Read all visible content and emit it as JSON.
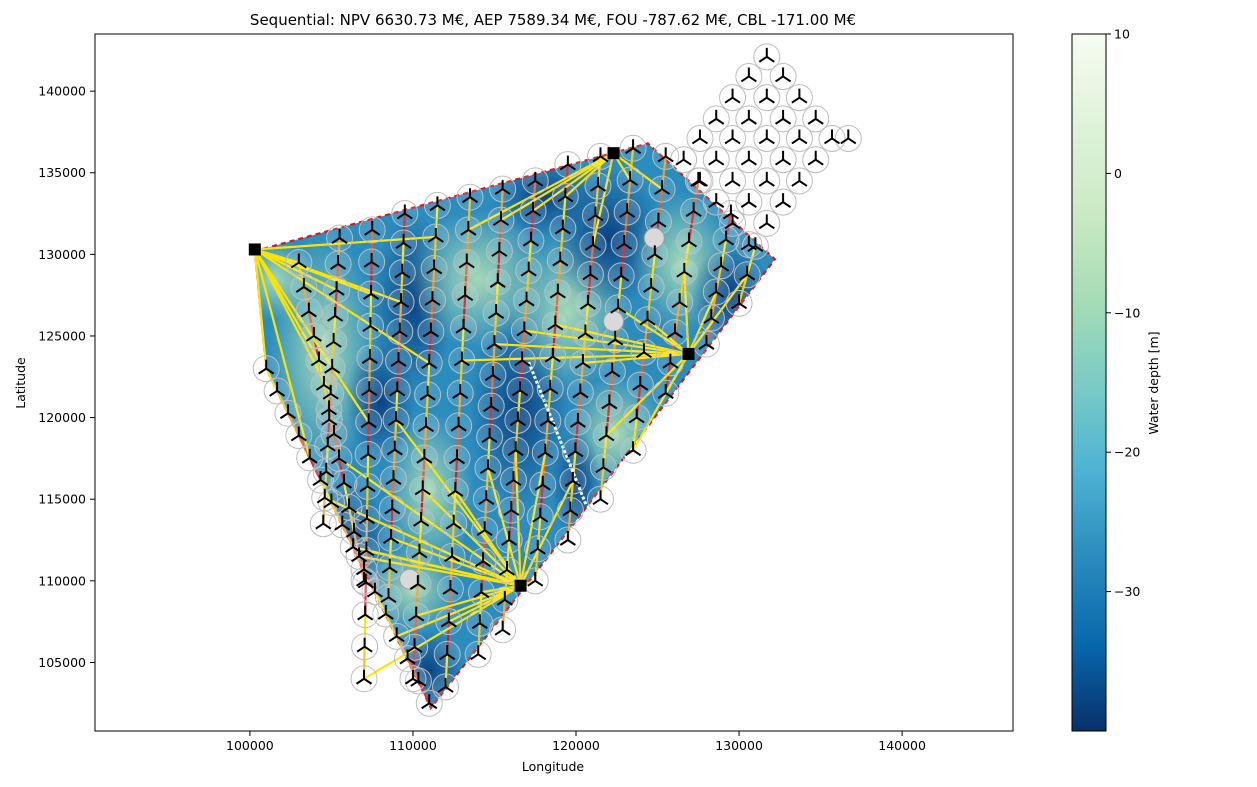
{
  "chart_data": {
    "type": "scatter",
    "title": "Sequential: NPV 6630.73 M€, AEP 7589.34 M€, FOU -787.62 M€, CBL -171.00 M€",
    "xlabel": "Longitude",
    "ylabel": "Latitude",
    "xlim": [
      90500,
      146800
    ],
    "ylim": [
      100800,
      143500
    ],
    "x_ticks": [
      100000,
      110000,
      120000,
      130000,
      140000
    ],
    "y_ticks": [
      105000,
      110000,
      115000,
      120000,
      125000,
      130000,
      135000,
      140000
    ],
    "grid": false,
    "colorbar": {
      "label": "Water depth [m]",
      "range": [
        -40,
        10
      ],
      "ticks": [
        10,
        0,
        -10,
        -20,
        -30
      ],
      "colormap": "GnBu_r",
      "stops": [
        "#08306b",
        "#0868ac",
        "#2b8cbe",
        "#4eb3d3",
        "#7bccc4",
        "#a8ddb5",
        "#ccebc5",
        "#e0f3db",
        "#f7fcf0"
      ]
    },
    "site_boundary": [
      [
        100300,
        130200
      ],
      [
        124400,
        136800
      ],
      [
        132200,
        129700
      ],
      [
        120400,
        114200
      ],
      [
        111100,
        102200
      ],
      [
        101000,
        123000
      ]
    ],
    "substations": [
      {
        "x": 100300,
        "y": 130300
      },
      {
        "x": 122300,
        "y": 136200
      },
      {
        "x": 126900,
        "y": 123900
      },
      {
        "x": 116600,
        "y": 109700
      }
    ],
    "turbine_rows": [
      {
        "x0": 101000,
        "y0": 123000,
        "x1": 111000,
        "y1": 102500,
        "n": 16
      },
      {
        "x0": 103000,
        "y0": 129500,
        "x1": 107000,
        "y1": 110000,
        "n": 14
      },
      {
        "x0": 105500,
        "y0": 131000,
        "x1": 104500,
        "y1": 113500,
        "n": 12
      },
      {
        "x0": 107500,
        "y0": 131500,
        "x1": 107000,
        "y1": 104000,
        "n": 15
      },
      {
        "x0": 109500,
        "y0": 132500,
        "x1": 108500,
        "y1": 109000,
        "n": 14
      },
      {
        "x0": 111500,
        "y0": 133000,
        "x1": 110000,
        "y1": 104000,
        "n": 16
      },
      {
        "x0": 113500,
        "y0": 133500,
        "x1": 112000,
        "y1": 103500,
        "n": 16
      },
      {
        "x0": 115500,
        "y0": 134000,
        "x1": 114000,
        "y1": 105500,
        "n": 16
      },
      {
        "x0": 117500,
        "y0": 134500,
        "x1": 115500,
        "y1": 107000,
        "n": 16
      },
      {
        "x0": 119500,
        "y0": 135500,
        "x1": 117500,
        "y1": 110000,
        "n": 14
      },
      {
        "x0": 121500,
        "y0": 136000,
        "x1": 119500,
        "y1": 112500,
        "n": 14
      },
      {
        "x0": 123500,
        "y0": 136500,
        "x1": 121500,
        "y1": 115000,
        "n": 12
      },
      {
        "x0": 125500,
        "y0": 136000,
        "x1": 123500,
        "y1": 118000,
        "n": 10
      },
      {
        "x0": 127500,
        "y0": 134500,
        "x1": 125500,
        "y1": 121500,
        "n": 8
      },
      {
        "x0": 129500,
        "y0": 132500,
        "x1": 128000,
        "y1": 124500,
        "n": 6
      },
      {
        "x0": 131000,
        "y0": 130500,
        "x1": 130000,
        "y1": 127000,
        "n": 3
      }
    ],
    "outside_turbines": [
      [
        131700,
        142100
      ],
      [
        130600,
        140900
      ],
      [
        132700,
        140900
      ],
      [
        129600,
        139600
      ],
      [
        131700,
        139600
      ],
      [
        133700,
        139600
      ],
      [
        128600,
        138300
      ],
      [
        130600,
        138300
      ],
      [
        132700,
        138300
      ],
      [
        134700,
        138300
      ],
      [
        127600,
        137100
      ],
      [
        129600,
        137100
      ],
      [
        131700,
        137100
      ],
      [
        133700,
        137100
      ],
      [
        135700,
        137100
      ],
      [
        126600,
        135800
      ],
      [
        128600,
        135800
      ],
      [
        130600,
        135800
      ],
      [
        132700,
        135800
      ],
      [
        134700,
        135800
      ],
      [
        136700,
        137100
      ],
      [
        127600,
        134500
      ],
      [
        129600,
        134500
      ],
      [
        131700,
        134500
      ],
      [
        133700,
        134500
      ],
      [
        128600,
        133200
      ],
      [
        130600,
        133200
      ],
      [
        132700,
        133200
      ],
      [
        129600,
        131900
      ],
      [
        131700,
        131900
      ],
      [
        130600,
        130600
      ]
    ],
    "obstacles": [
      [
        124800,
        131000
      ],
      [
        122300,
        125900
      ],
      [
        109800,
        110100
      ]
    ],
    "white_cable": [
      [
        117100,
        123400
      ],
      [
        120600,
        114700
      ]
    ],
    "cable_colors": [
      "#ffe300",
      "#f5c400",
      "#f39a1c",
      "#ea5a1e",
      "#d7191c"
    ]
  }
}
